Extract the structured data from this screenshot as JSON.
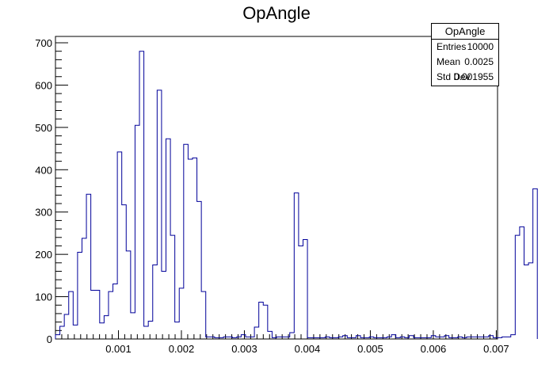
{
  "chart_data": {
    "type": "histogram",
    "title": "OpAngle",
    "xlabel": "",
    "ylabel": "",
    "xlim": [
      0.0,
      0.00702
    ],
    "ylim": [
      0,
      715
    ],
    "x_ticks": [
      "0.001",
      "0.002",
      "0.003",
      "0.004",
      "0.005",
      "0.006",
      "0.007"
    ],
    "y_ticks": [
      "0",
      "100",
      "200",
      "300",
      "400",
      "500",
      "600",
      "700"
    ],
    "line_color": "#000099",
    "stats_box": {
      "name": "OpAngle",
      "entries_label": "Entries",
      "entries": "10000",
      "mean_label": "Mean",
      "mean": "0.0025",
      "stddev_label": "Std Dev",
      "stddev": "0.001955"
    },
    "bin_width": 7.02e-05,
    "counts": [
      10,
      30,
      58,
      112,
      33,
      205,
      238,
      342,
      115,
      115,
      38,
      55,
      112,
      130,
      442,
      317,
      208,
      62,
      505,
      680,
      30,
      42,
      175,
      588,
      160,
      473,
      245,
      40,
      120,
      460,
      425,
      428,
      325,
      112,
      5,
      5,
      3,
      3,
      5,
      5,
      3,
      5,
      10,
      5,
      5,
      28,
      87,
      80,
      18,
      3,
      5,
      5,
      5,
      15,
      345,
      220,
      235,
      3,
      3,
      3,
      3,
      5,
      3,
      3,
      5,
      8,
      3,
      3,
      8,
      3,
      3,
      5,
      3,
      3,
      3,
      5,
      10,
      3,
      5,
      3,
      8,
      3,
      3,
      3,
      3,
      8,
      5,
      5,
      8,
      3,
      3,
      5,
      3,
      5,
      5,
      5,
      5,
      5,
      8,
      3,
      3,
      5,
      5,
      10,
      245,
      265,
      175,
      180,
      355
    ]
  }
}
